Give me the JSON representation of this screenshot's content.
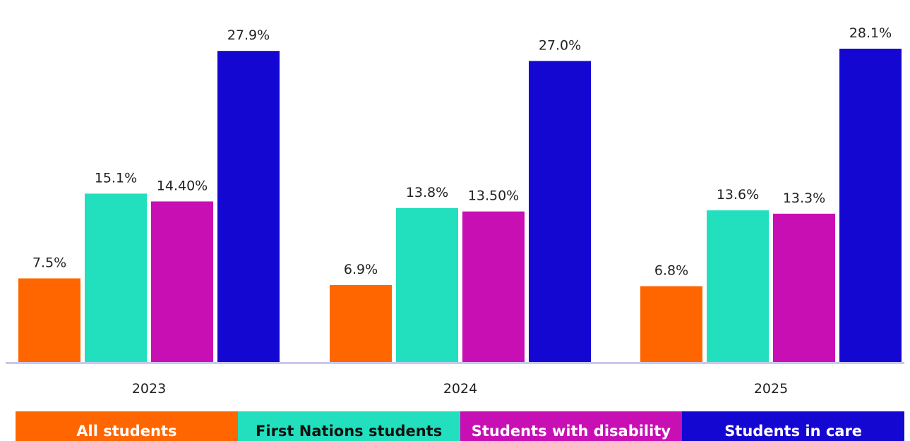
{
  "chart_data": {
    "type": "bar",
    "categories": [
      "2023",
      "2024",
      "2025"
    ],
    "series": [
      {
        "name": "All students",
        "values": [
          7.5,
          6.9,
          6.8
        ],
        "labels": [
          "7.5%",
          "6.9%",
          "6.8%"
        ],
        "color": "#FF6600",
        "legend_text_color": "#FFFFFF"
      },
      {
        "name": "First Nations students",
        "values": [
          15.1,
          13.8,
          13.6
        ],
        "labels": [
          "15.1%",
          "13.8%",
          "13.6%"
        ],
        "color": "#22E0BE",
        "legend_text_color": "#111111"
      },
      {
        "name": "Students with disability",
        "values": [
          14.4,
          13.5,
          13.3
        ],
        "labels": [
          "14.40%",
          "13.50%",
          "13.3%"
        ],
        "color": "#C80FB4",
        "legend_text_color": "#FFFFFF"
      },
      {
        "name": "Students in care",
        "values": [
          27.9,
          27.0,
          28.1
        ],
        "labels": [
          "27.9%",
          "27.0%",
          "28.1%"
        ],
        "color": "#1407D2",
        "legend_text_color": "#FFFFFF"
      }
    ],
    "ylim": [
      0,
      30
    ],
    "grid": false,
    "legend_position": "bottom",
    "axis_color": "#C8C8F0"
  }
}
